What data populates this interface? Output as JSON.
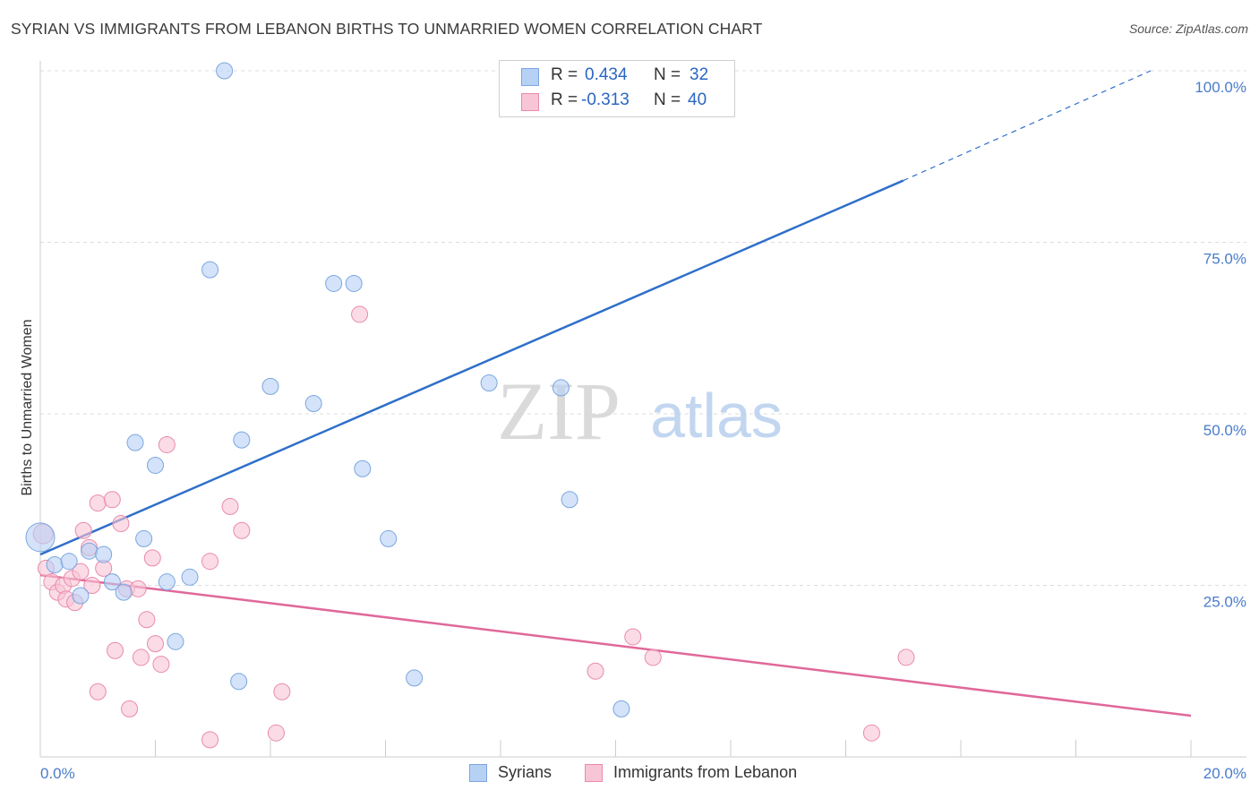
{
  "header": {
    "title": "SYRIAN VS IMMIGRANTS FROM LEBANON BIRTHS TO UNMARRIED WOMEN CORRELATION CHART",
    "source": "Source: ZipAtlas.com"
  },
  "watermark": {
    "zip": "ZIP",
    "atlas": "atlas"
  },
  "legend": {
    "rows": [
      {
        "r_key": "R =",
        "r_val": "0.434",
        "n_key": "N =",
        "n_val": "32"
      },
      {
        "r_key": "R =",
        "r_val": "-0.313",
        "n_key": "N =",
        "n_val": "40"
      }
    ]
  },
  "bottom_legend": {
    "series1": "Syrians",
    "series2": "Immigrants from Lebanon"
  },
  "colors": {
    "syrians_fill": "#b7d1f5",
    "syrians_stroke": "#7aa6e0",
    "syrians_line": "#2f6fca",
    "lebanon_fill": "#f8c5d6",
    "lebanon_stroke": "#e98aab",
    "lebanon_line": "#e0689a",
    "tick_text": "#4a7cc9",
    "grid": "#dcdcdc"
  },
  "chart_data": {
    "type": "scatter",
    "title": "SYRIAN VS IMMIGRANTS FROM LEBANON BIRTHS TO UNMARRIED WOMEN CORRELATION CHART",
    "xlabel": "",
    "ylabel": "Births to Unmarried Women",
    "xlim": [
      0,
      20
    ],
    "ylim": [
      0,
      100
    ],
    "x_ticks": [
      "0.0%",
      "20.0%"
    ],
    "y_ticks": [
      "25.0%",
      "50.0%",
      "75.0%",
      "100.0%"
    ],
    "y_tick_values": [
      25,
      50,
      75,
      100
    ],
    "grid": true,
    "legend_position": "top-center",
    "series": [
      {
        "name": "Syrians",
        "r": 0.434,
        "n": 32,
        "trend": {
          "x0": 0,
          "y0": 29.5,
          "x1": 15,
          "y1": 84.0,
          "dash_to_x": 19.3,
          "dash_to_y": 100
        },
        "points": [
          [
            0.0,
            32.0,
            16
          ],
          [
            0.25,
            28.0,
            9
          ],
          [
            0.5,
            28.5,
            9
          ],
          [
            0.7,
            23.5,
            9
          ],
          [
            0.85,
            30.0,
            9
          ],
          [
            1.1,
            29.5,
            9
          ],
          [
            1.25,
            25.5,
            9
          ],
          [
            1.45,
            24.0,
            9
          ],
          [
            1.65,
            45.8,
            9
          ],
          [
            1.8,
            31.8,
            9
          ],
          [
            2.0,
            42.5,
            9
          ],
          [
            2.2,
            25.5,
            9
          ],
          [
            2.35,
            16.8,
            9
          ],
          [
            2.6,
            26.2,
            9
          ],
          [
            2.95,
            71.0,
            9
          ],
          [
            3.2,
            100.0,
            9
          ],
          [
            3.45,
            11.0,
            9
          ],
          [
            3.5,
            46.2,
            9
          ],
          [
            4.0,
            54.0,
            9
          ],
          [
            4.75,
            51.5,
            9
          ],
          [
            5.1,
            69.0,
            9
          ],
          [
            5.45,
            69.0,
            9
          ],
          [
            5.6,
            42.0,
            9
          ],
          [
            6.05,
            31.8,
            9
          ],
          [
            6.5,
            11.5,
            9
          ],
          [
            7.8,
            54.5,
            9
          ],
          [
            8.75,
            100.0,
            9
          ],
          [
            9.05,
            53.8,
            9
          ],
          [
            9.2,
            37.5,
            9
          ],
          [
            10.1,
            7.0,
            9
          ],
          [
            10.45,
            100.0,
            9
          ],
          [
            8.6,
            100.0,
            9
          ]
        ]
      },
      {
        "name": "Immigrants from Lebanon",
        "r": -0.313,
        "n": 40,
        "trend": {
          "x0": 0,
          "y0": 26.5,
          "x1": 20,
          "y1": 6.0
        },
        "points": [
          [
            0.05,
            32.5,
            11
          ],
          [
            0.1,
            27.5,
            9
          ],
          [
            0.2,
            25.5,
            9
          ],
          [
            0.3,
            24.0,
            9
          ],
          [
            0.4,
            25.0,
            9
          ],
          [
            0.45,
            23.0,
            9
          ],
          [
            0.55,
            26.0,
            9
          ],
          [
            0.6,
            22.5,
            9
          ],
          [
            0.7,
            27.0,
            9
          ],
          [
            0.75,
            33.0,
            9
          ],
          [
            0.85,
            30.5,
            9
          ],
          [
            0.9,
            25.0,
            9
          ],
          [
            1.0,
            37.0,
            9
          ],
          [
            1.0,
            9.5,
            9
          ],
          [
            1.1,
            27.5,
            9
          ],
          [
            1.25,
            37.5,
            9
          ],
          [
            1.3,
            15.5,
            9
          ],
          [
            1.4,
            34.0,
            9
          ],
          [
            1.5,
            24.5,
            9
          ],
          [
            1.55,
            7.0,
            9
          ],
          [
            1.7,
            24.5,
            9
          ],
          [
            1.75,
            14.5,
            9
          ],
          [
            1.85,
            20.0,
            9
          ],
          [
            1.95,
            29.0,
            9
          ],
          [
            2.0,
            16.5,
            9
          ],
          [
            2.1,
            13.5,
            9
          ],
          [
            2.2,
            45.5,
            9
          ],
          [
            2.95,
            28.5,
            9
          ],
          [
            2.95,
            2.5,
            9
          ],
          [
            3.3,
            36.5,
            9
          ],
          [
            3.5,
            33.0,
            9
          ],
          [
            4.1,
            3.5,
            9
          ],
          [
            4.2,
            9.5,
            9
          ],
          [
            5.55,
            64.5,
            9
          ],
          [
            9.65,
            12.5,
            9
          ],
          [
            10.3,
            17.5,
            9
          ],
          [
            10.65,
            14.5,
            9
          ],
          [
            14.45,
            3.5,
            9
          ],
          [
            15.05,
            14.5,
            9
          ],
          [
            8.75,
            100.0,
            9
          ]
        ]
      }
    ]
  }
}
